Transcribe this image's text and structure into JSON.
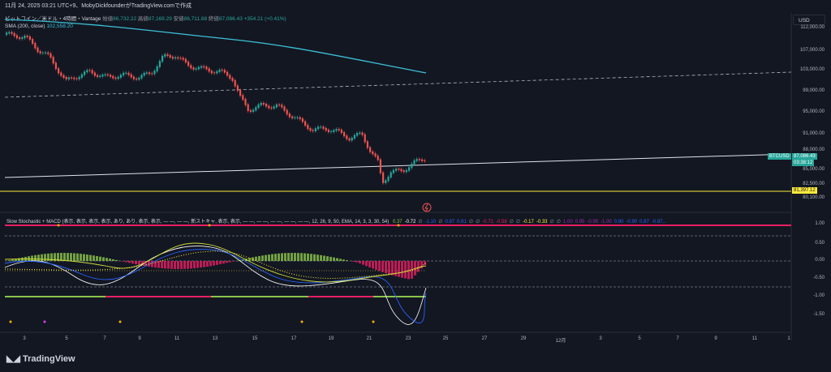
{
  "header": {
    "text": "11月 24, 2025 03:21 UTC+9、MobyDickfounderがTradingView.comで作成"
  },
  "legend": {
    "symbol": "ビットコイン／米ドル・4時間・Vantage",
    "o_label": "始値",
    "o_value": "86,732.22",
    "h_label": "高値",
    "h_value": "87,169.29",
    "l_label": "安値",
    "l_value": "86,711.88",
    "c_label": "終値",
    "c_value": "87,086.43",
    "change": "+354.21 (+0.41%)"
  },
  "sma": {
    "label": "SMA (200, close)",
    "value": "102,558.20"
  },
  "currency_button": "USD",
  "price_axis": [
    "112,000.00",
    "107,000.00",
    "103,000.00",
    "99,000.00",
    "95,000.00",
    "91,000.00",
    "88,000.00",
    "85,000.00",
    "82,500.00",
    "80,100.00"
  ],
  "price_tag": {
    "symbol": "BTCUSD",
    "price": "87,086.43",
    "countdown": "03:38:12"
  },
  "support_tag": "81,397.12",
  "indicator": {
    "title": "Slow Stochastic + MACD (表示, 表示, 表示, 表示, あり, あり, 表示, 表示, — —, — —, 新ストキャ, 表示, 表示, — —, — —, — —, — —, — —, 12, 26, 9, 50, EMA, 14, 3, 3, 30, 54)",
    "values": [
      "0.37",
      "-0.72",
      "∅",
      "-1.10",
      "∅",
      "0.87",
      "0.81",
      "∅",
      "∅",
      "-0.71",
      "-0.58",
      "∅",
      "∅",
      "-0.17",
      "-0.33",
      "∅",
      "∅",
      "1.00",
      "0.95",
      "-0.95",
      "-1.00",
      "0.90",
      "-0.90",
      "0.87",
      "-0.87..."
    ],
    "value_colors": [
      "#8bc34a",
      "#ffffff",
      "#9598a1",
      "#2962ff",
      "#9598a1",
      "#2962ff",
      "#2962ff",
      "#9598a1",
      "#9598a1",
      "#e91e63",
      "#e91e63",
      "#9598a1",
      "#9598a1",
      "#ffeb3b",
      "#ffeb3b",
      "#9598a1",
      "#9598a1",
      "#9c27b0",
      "#9c27b0",
      "#9c27b0",
      "#9c27b0",
      "#2962ff",
      "#2962ff",
      "#2962ff",
      "#2962ff"
    ],
    "axis": [
      "1.00",
      "0.50",
      "0.00",
      "-0.50",
      "-1.00",
      "-1.50"
    ]
  },
  "x_axis": [
    "3",
    "5",
    "7",
    "9",
    "11",
    "13",
    "15",
    "17",
    "19",
    "21",
    "23",
    "25",
    "27",
    "29",
    "12月",
    "3",
    "5",
    "7",
    "9",
    "11",
    "1"
  ],
  "brand": "TradingView",
  "colors": {
    "up": "#26a69a",
    "down": "#ef5350",
    "sma": "#3cc2d8",
    "support": "#ffeb3b",
    "bg": "#131722"
  }
}
